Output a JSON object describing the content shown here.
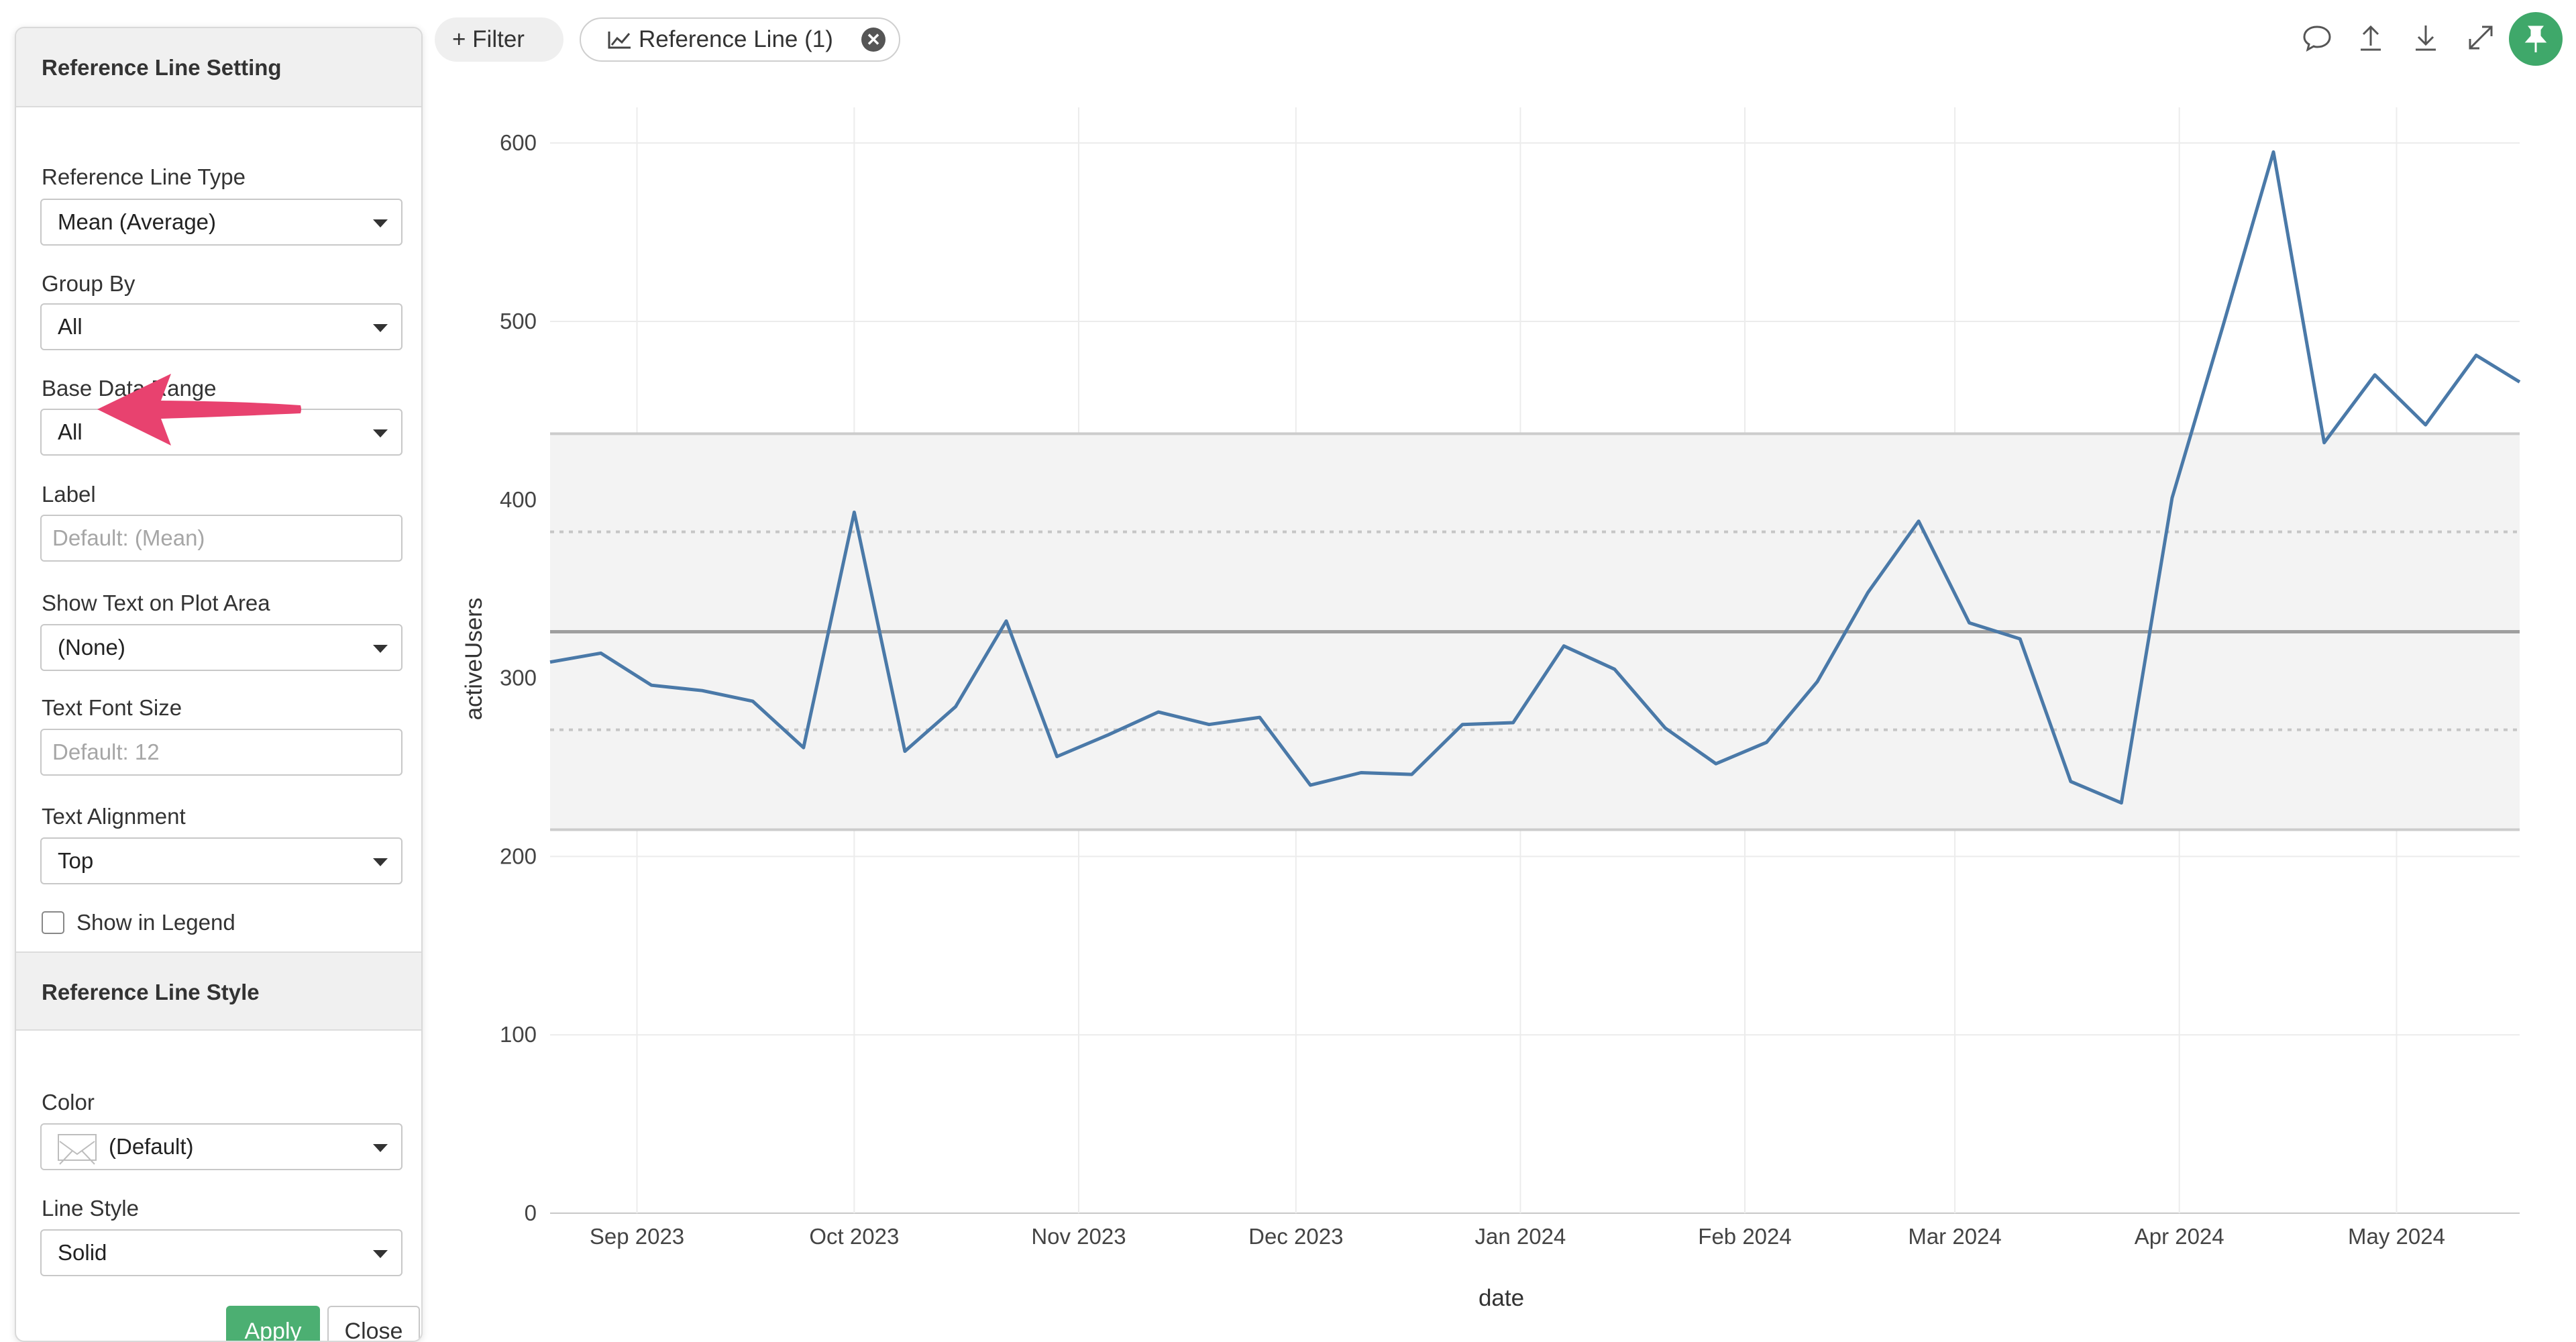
{
  "panel": {
    "setting_title": "Reference Line Setting",
    "ref_type_label": "Reference Line Type",
    "ref_type_value": "Mean (Average)",
    "group_by_label": "Group By",
    "group_by_value": "All",
    "base_range_label": "Base Data Range",
    "base_range_value": "All",
    "label_label": "Label",
    "label_placeholder": "Default: (Mean)",
    "show_text_label": "Show Text on Plot Area",
    "show_text_value": "(None)",
    "font_size_label": "Text Font Size",
    "font_size_placeholder": "Default: 12",
    "alignment_label": "Text Alignment",
    "alignment_value": "Top",
    "legend_label": "Show in Legend",
    "style_title": "Reference Line Style",
    "color_label": "Color",
    "color_value": "(Default)",
    "line_style_label": "Line Style",
    "line_style_value": "Solid",
    "apply_label": "Apply",
    "close_label": "Close"
  },
  "toolbar": {
    "filter_label": "+ Filter",
    "ref_chip_label": "Reference Line (1)",
    "icons": [
      "comment-icon",
      "upload-icon",
      "download-icon",
      "expand-icon",
      "pin-icon"
    ]
  },
  "colors": {
    "series": "#4a79a8",
    "accent_green": "#4caf72",
    "arrow": "#e8426f",
    "band": "#f3f3f3",
    "ref_line": "#9e9e9e"
  },
  "chart_data": {
    "type": "line",
    "xlabel": "date",
    "ylabel": "activeUsers",
    "ylim": [
      0,
      620
    ],
    "yticks": [
      0,
      100,
      200,
      300,
      400,
      500,
      600
    ],
    "xticks": [
      {
        "date": "2023-09-01",
        "label": "Sep 2023"
      },
      {
        "date": "2023-10-01",
        "label": "Oct 2023"
      },
      {
        "date": "2023-11-01",
        "label": "Nov 2023"
      },
      {
        "date": "2023-12-01",
        "label": "Dec 2023"
      },
      {
        "date": "2024-01-01",
        "label": "Jan 2024"
      },
      {
        "date": "2024-02-01",
        "label": "Feb 2024"
      },
      {
        "date": "2024-03-01",
        "label": "Mar 2024"
      },
      {
        "date": "2024-04-01",
        "label": "Apr 2024"
      },
      {
        "date": "2024-05-01",
        "label": "May 2024"
      }
    ],
    "xlim": [
      "2023-08-20",
      "2024-05-18"
    ],
    "grid": true,
    "series": [
      {
        "x": [
          "2023-08-20",
          "2023-08-27",
          "2023-09-03",
          "2023-09-10",
          "2023-09-17",
          "2023-09-24",
          "2023-10-01",
          "2023-10-08",
          "2023-10-15",
          "2023-10-22",
          "2023-10-29",
          "2023-11-05",
          "2023-11-12",
          "2023-11-19",
          "2023-11-26",
          "2023-12-03",
          "2023-12-10",
          "2023-12-17",
          "2023-12-24",
          "2023-12-31",
          "2024-01-07",
          "2024-01-14",
          "2024-01-21",
          "2024-01-28",
          "2024-02-04",
          "2024-02-11",
          "2024-02-18",
          "2024-02-25",
          "2024-03-03",
          "2024-03-10",
          "2024-03-17",
          "2024-03-24",
          "2024-03-31",
          "2024-04-07",
          "2024-04-14",
          "2024-04-21",
          "2024-04-28",
          "2024-05-05",
          "2024-05-12",
          "2024-05-18"
        ],
        "values": [
          309,
          314,
          296,
          293,
          287,
          261,
          393,
          259,
          284,
          332,
          256,
          268,
          281,
          274,
          278,
          240,
          247,
          246,
          274,
          275,
          318,
          305,
          272,
          252,
          264,
          298,
          348,
          388,
          331,
          322,
          242,
          230,
          401,
          497,
          595,
          432,
          470,
          442,
          481,
          466
        ]
      }
    ],
    "reference": {
      "mean": 326,
      "band": [
        215,
        437
      ],
      "inner": [
        271,
        382
      ]
    }
  }
}
